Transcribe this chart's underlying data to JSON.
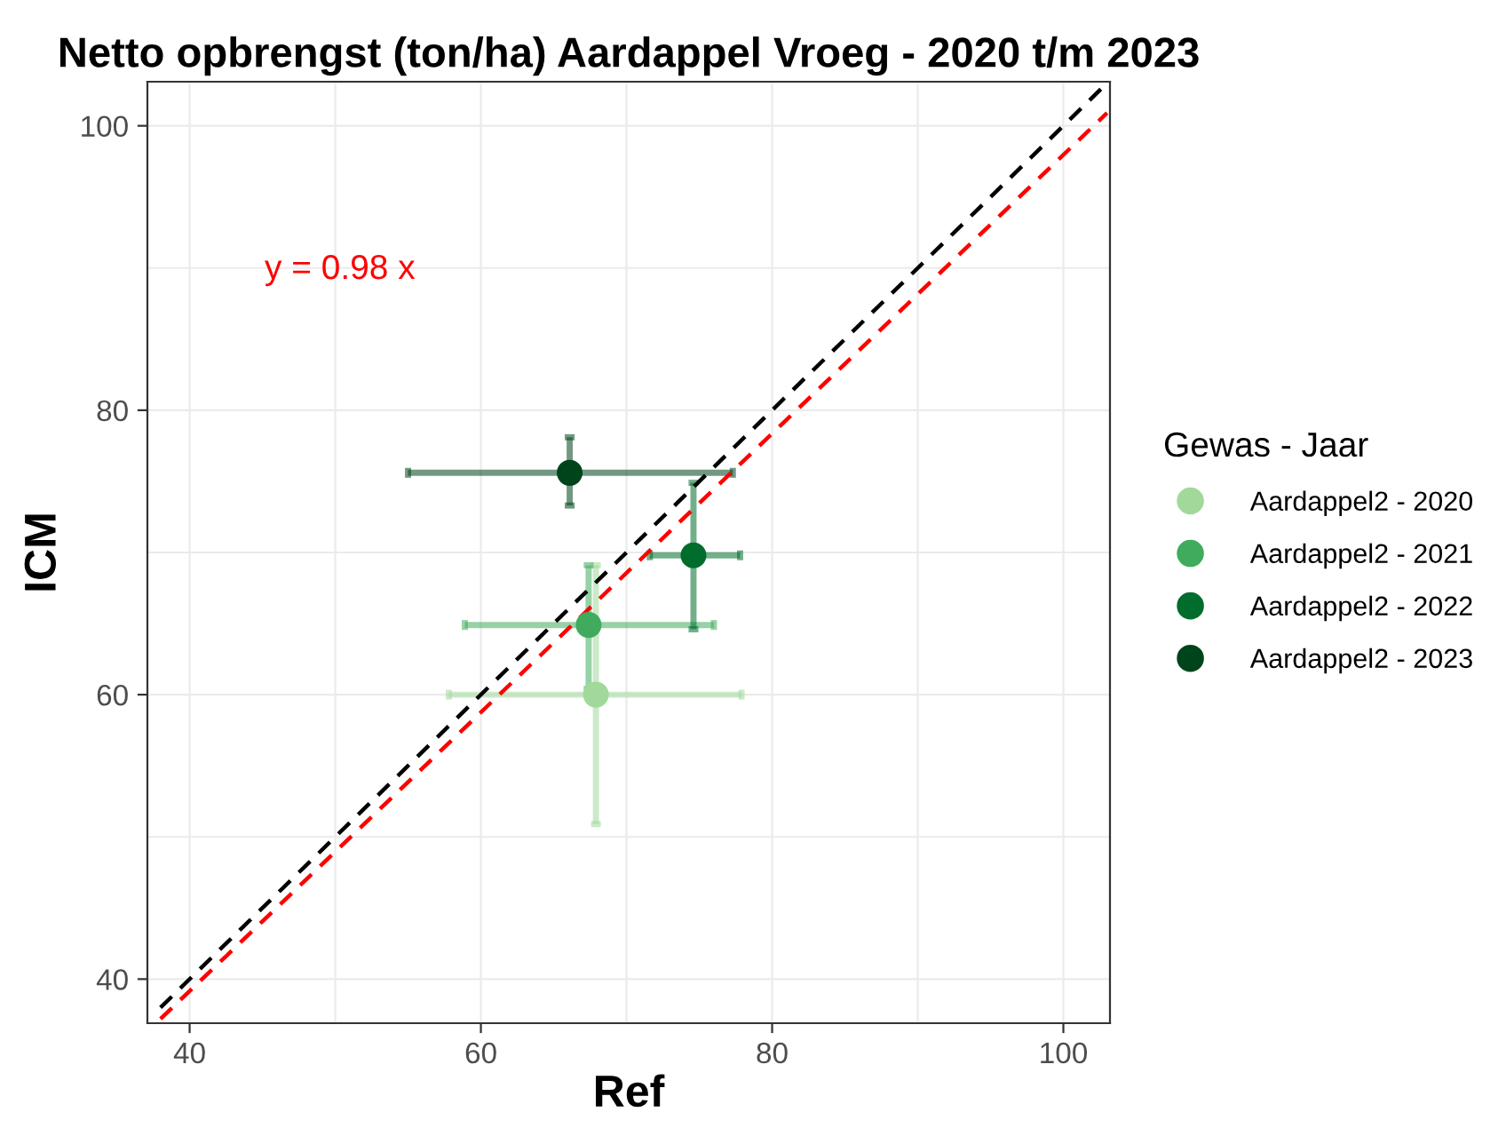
{
  "chart_data": {
    "type": "scatter",
    "title": "Netto opbrengst (ton/ha) Aardappel Vroeg - 2020 t/m 2023",
    "xlabel": "Ref",
    "ylabel": "ICM",
    "legend_title": "Gewas - Jaar",
    "legend": "right",
    "grid": true,
    "xlim": [
      37.1,
      103.2
    ],
    "ylim": [
      36.9,
      103.1
    ],
    "xticks": [
      40,
      {
        "value": 50,
        "label": null
      },
      60,
      {
        "value": 70,
        "label": null
      },
      80,
      {
        "value": 90,
        "label": null
      },
      100
    ],
    "yticks": [
      40,
      {
        "value": 50,
        "label": null
      },
      60,
      {
        "value": 70,
        "label": null
      },
      80,
      {
        "value": 90,
        "label": null
      },
      100
    ],
    "annotations": [
      "y = 0.98 x"
    ],
    "series": [
      {
        "type": "line",
        "color": "#000000",
        "line_style": "dashed",
        "marker": "none",
        "x": [
          38,
          103
        ],
        "values": [
          38,
          103
        ]
      },
      {
        "type": "line",
        "color": "#ff0000",
        "line_style": "dashed",
        "marker": "none",
        "x": [
          38,
          103
        ],
        "values": [
          37.2,
          100.9
        ]
      },
      {
        "name": "Aardappel2 - 2020",
        "color": "#a1d99b",
        "marker": "circle",
        "x": [
          67.9
        ],
        "values": [
          60
        ],
        "errors": [
          [
            50.9,
            69.1
          ]
        ],
        "xerrors": [
          [
            57.8,
            77.9
          ]
        ]
      },
      {
        "name": "Aardappel2 - 2021",
        "color": "#41ab5d",
        "marker": "circle",
        "x": [
          67.4
        ],
        "values": [
          64.9
        ],
        "errors": [
          [
            60.4,
            69.1
          ]
        ],
        "xerrors": [
          [
            58.9,
            76.0
          ]
        ]
      },
      {
        "name": "Aardappel2 - 2022",
        "color": "#006d2c",
        "marker": "circle",
        "x": [
          74.6
        ],
        "values": [
          69.8
        ],
        "errors": [
          [
            64.6,
            74.9
          ]
        ],
        "xerrors": [
          [
            71.6,
            77.8
          ]
        ]
      },
      {
        "name": "Aardappel2 - 2023",
        "color": "#00441b",
        "marker": "circle",
        "x": [
          66.1
        ],
        "values": [
          75.6
        ],
        "errors": [
          [
            73.3,
            78.1
          ]
        ],
        "xerrors": [
          [
            55.0,
            77.3
          ]
        ]
      }
    ]
  }
}
